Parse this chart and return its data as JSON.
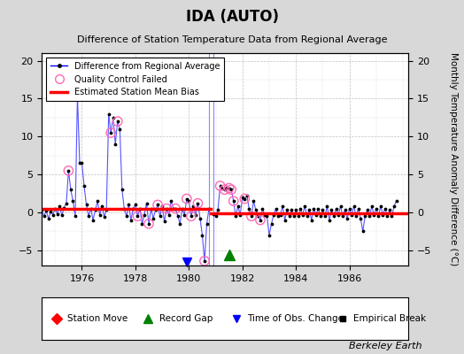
{
  "title": "IDA (AUTO)",
  "subtitle": "Difference of Station Temperature Data from Regional Average",
  "ylabel_right": "Monthly Temperature Anomaly Difference (°C)",
  "xlim": [
    1974.5,
    1988.2
  ],
  "ylim": [
    -7,
    21
  ],
  "yticks": [
    -5,
    0,
    5,
    10,
    15,
    20
  ],
  "xticks": [
    1976,
    1978,
    1980,
    1982,
    1984,
    1986
  ],
  "background_color": "#d8d8d8",
  "plot_bg_color": "#ffffff",
  "bias_before": 0.5,
  "bias_after": -0.15,
  "bias_break": 1980.83,
  "record_gap_x": 1981.5,
  "record_gap_y": -5.6,
  "time_obs_change_x": 1979.92,
  "time_obs_change_y": -6.5,
  "vline1_x": 1980.75,
  "vline2_x": 1980.92,
  "berkeley_earth_text": "Berkeley Earth",
  "times1": [
    1974.5,
    1974.583,
    1974.667,
    1974.75,
    1974.833,
    1974.917,
    1975.0,
    1975.083,
    1975.167,
    1975.25,
    1975.333,
    1975.417,
    1975.5,
    1975.583,
    1975.667,
    1975.75,
    1975.833,
    1975.917,
    1976.0,
    1976.083,
    1976.167,
    1976.25,
    1976.333,
    1976.417,
    1976.5,
    1976.583,
    1976.667,
    1976.75,
    1976.833,
    1976.917,
    1977.0,
    1977.083,
    1977.167,
    1977.25,
    1977.333,
    1977.417,
    1977.5,
    1977.583,
    1977.667,
    1977.75,
    1977.833,
    1977.917,
    1978.0,
    1978.083,
    1978.167,
    1978.25,
    1978.333,
    1978.417,
    1978.5,
    1978.583,
    1978.667,
    1978.75,
    1978.833,
    1978.917,
    1979.0,
    1979.083,
    1979.167,
    1979.25,
    1979.333,
    1979.417,
    1979.5,
    1979.583,
    1979.667,
    1979.75,
    1979.833,
    1979.917,
    1980.0,
    1980.083,
    1980.167,
    1980.25,
    1980.333,
    1980.417,
    1980.5,
    1980.583,
    1980.667,
    1980.75
  ],
  "vals1": [
    0.3,
    -0.5,
    0.2,
    -0.8,
    0.1,
    -0.3,
    0.5,
    -0.2,
    0.8,
    -0.4,
    0.6,
    1.2,
    5.5,
    3.0,
    1.5,
    -0.5,
    15.5,
    6.5,
    6.5,
    3.5,
    1.0,
    -0.5,
    0.5,
    -1.0,
    0.3,
    1.5,
    -0.3,
    0.8,
    -0.6,
    0.4,
    13.0,
    10.5,
    12.5,
    9.0,
    12.0,
    11.0,
    3.0,
    0.5,
    -0.5,
    1.0,
    -1.0,
    0.5,
    1.0,
    -0.5,
    0.5,
    -1.5,
    -0.3,
    1.2,
    -1.5,
    0.5,
    -0.8,
    0.3,
    1.0,
    -0.5,
    0.8,
    -1.2,
    0.5,
    -0.3,
    1.5,
    0.5,
    0.5,
    -0.5,
    -1.5,
    0.5,
    -0.3,
    1.8,
    1.5,
    -0.5,
    0.8,
    -0.3,
    1.2,
    -0.8,
    -3.0,
    -6.4,
    -1.5,
    0.5
  ],
  "times2": [
    1980.917,
    1981.0,
    1981.083,
    1981.167,
    1981.25,
    1981.333,
    1981.417,
    1981.5,
    1981.583,
    1981.667,
    1981.75,
    1981.833,
    1981.917,
    1982.0,
    1982.083,
    1982.167,
    1982.25,
    1982.333,
    1982.417,
    1982.5,
    1982.583,
    1982.667,
    1982.75,
    1982.833,
    1982.917,
    1983.0,
    1983.083,
    1983.167,
    1983.25,
    1983.333,
    1983.417,
    1983.5,
    1983.583,
    1983.667,
    1983.75,
    1983.833,
    1983.917,
    1984.0,
    1984.083,
    1984.167,
    1984.25,
    1984.333,
    1984.417,
    1984.5,
    1984.583,
    1984.667,
    1984.75,
    1984.833,
    1984.917,
    1985.0,
    1985.083,
    1985.167,
    1985.25,
    1985.333,
    1985.417,
    1985.5,
    1985.583,
    1985.667,
    1985.75,
    1985.833,
    1985.917,
    1986.0,
    1986.083,
    1986.167,
    1986.25,
    1986.333,
    1986.417,
    1986.5,
    1986.583,
    1986.667,
    1986.75,
    1986.833,
    1986.917,
    1987.0,
    1987.083,
    1987.167,
    1987.25,
    1987.333,
    1987.417,
    1987.5,
    1987.583,
    1987.667,
    1987.75
  ],
  "vals2": [
    -0.2,
    -0.5,
    0.3,
    3.5,
    3.2,
    3.0,
    3.3,
    3.2,
    3.0,
    1.5,
    -0.5,
    0.8,
    -0.3,
    2.0,
    1.8,
    2.2,
    0.5,
    -0.5,
    1.5,
    0.3,
    -0.5,
    -1.0,
    0.5,
    -0.3,
    -0.5,
    -3.0,
    -1.5,
    -0.3,
    0.5,
    -0.5,
    -0.3,
    0.8,
    -1.0,
    0.3,
    -0.5,
    0.3,
    -0.5,
    0.3,
    -0.5,
    0.5,
    -0.3,
    0.8,
    -0.5,
    0.3,
    -1.0,
    0.5,
    -0.3,
    0.5,
    -0.5,
    0.3,
    -0.5,
    0.8,
    -1.0,
    0.3,
    -0.5,
    0.5,
    -0.3,
    0.8,
    -0.5,
    0.3,
    -0.8,
    0.5,
    -0.3,
    0.8,
    -0.5,
    0.5,
    -0.8,
    -2.5,
    -0.5,
    0.3,
    -0.5,
    0.8,
    -0.3,
    0.5,
    -0.5,
    0.8,
    -0.3,
    0.5,
    -0.5,
    0.3,
    -0.5,
    0.8,
    1.5
  ],
  "qc_times": [
    1975.5,
    1977.083,
    1977.333,
    1978.083,
    1978.5,
    1978.833,
    1979.167,
    1979.5,
    1979.917,
    1980.083,
    1980.333,
    1980.583,
    1981.167,
    1981.333,
    1981.5,
    1981.583,
    1981.667,
    1982.083,
    1982.333,
    1982.667
  ]
}
